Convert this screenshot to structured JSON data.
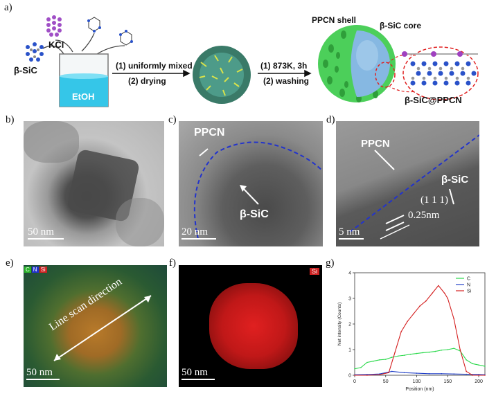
{
  "panels": {
    "a": {
      "letter": "a)",
      "labels": {
        "kcl": "KCl",
        "sic": "β-SiC",
        "etoh": "EtOH",
        "step1_line1": "(1) uniformly mixed",
        "step1_line2": "(2) drying",
        "step2_line1": "(1) 873K, 3h",
        "step2_line2": "(2) washing",
        "shell": "PPCN shell",
        "core": "β-SiC core",
        "product": "β-SiC@PPCN"
      },
      "colors": {
        "beaker_liquid": "#35c6e8",
        "sphere_core": "#86b8e2",
        "shell_green": "#4ccf5a",
        "atom_blue": "#2a52c9",
        "atom_purple": "#a040c0"
      }
    },
    "b": {
      "letter": "b)",
      "scale": "50 nm"
    },
    "c": {
      "letter": "c)",
      "scale": "20 nm",
      "ppcn": "PPCN",
      "sic": "β-SiC"
    },
    "d": {
      "letter": "d)",
      "scale": "5 nm",
      "ppcn": "PPCN",
      "sic": "β-SiC",
      "plane": "(1 1 1)",
      "spacing": "0.25nm"
    },
    "e": {
      "letter": "e)",
      "scale": "50 nm",
      "scan": "Line scan direction",
      "legend": [
        "C",
        "N",
        "Si"
      ]
    },
    "f": {
      "letter": "f)",
      "scale": "50 nm",
      "element": "Si"
    },
    "g": {
      "letter": "g)"
    }
  },
  "chart_data": {
    "type": "line",
    "title": "",
    "xlabel": "Position (nm)",
    "ylabel": "Net intensity (Counts)",
    "xlim": [
      0,
      210
    ],
    "ylim": [
      0,
      4
    ],
    "xticks": [
      0,
      50,
      100,
      150,
      200
    ],
    "yticks": [
      0,
      1,
      2,
      3,
      4
    ],
    "legend_position": "top-right",
    "series": [
      {
        "name": "C",
        "color": "#29d94a",
        "x": [
          0,
          10,
          20,
          30,
          40,
          50,
          60,
          70,
          80,
          90,
          100,
          110,
          120,
          130,
          140,
          150,
          160,
          170,
          180,
          190,
          200,
          210
        ],
        "y": [
          0.25,
          0.3,
          0.5,
          0.55,
          0.6,
          0.62,
          0.7,
          0.75,
          0.78,
          0.82,
          0.85,
          0.88,
          0.9,
          0.93,
          0.98,
          1.0,
          1.05,
          0.95,
          0.6,
          0.45,
          0.4,
          0.35
        ]
      },
      {
        "name": "N",
        "color": "#2240c8",
        "x": [
          0,
          20,
          40,
          60,
          80,
          100,
          120,
          140,
          160,
          180,
          200,
          210
        ],
        "y": [
          0.02,
          0.03,
          0.05,
          0.15,
          0.1,
          0.08,
          0.06,
          0.06,
          0.05,
          0.04,
          0.03,
          0.02
        ]
      },
      {
        "name": "Si",
        "color": "#d42020",
        "x": [
          0,
          20,
          40,
          55,
          65,
          75,
          85,
          95,
          105,
          115,
          125,
          135,
          145,
          150,
          160,
          170,
          180,
          190,
          200,
          210
        ],
        "y": [
          0.0,
          0.0,
          0.02,
          0.1,
          0.9,
          1.7,
          2.1,
          2.4,
          2.7,
          2.9,
          3.2,
          3.5,
          3.2,
          3.0,
          2.2,
          1.0,
          0.15,
          0.0,
          0.0,
          0.0
        ]
      }
    ]
  }
}
